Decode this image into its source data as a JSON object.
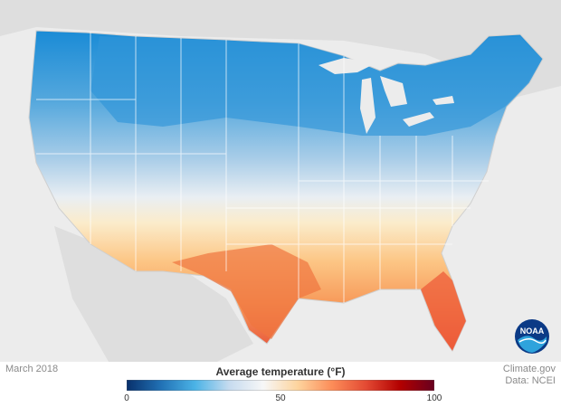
{
  "caption": {
    "date": "March 2018",
    "source_line1": "Climate.gov",
    "source_line2": "Data: NCEI"
  },
  "legend": {
    "title": "Average temperature (°F)",
    "min": 0,
    "max": 100,
    "ticks": [
      "0",
      "50",
      "100"
    ],
    "tick_values": [
      0,
      50,
      100
    ]
  },
  "logo": {
    "text": "NOAA"
  },
  "colors": {
    "background": "#ececec",
    "land_outside": "#d9d9d9",
    "state_border": "#b8b8b8",
    "scale_stops": [
      "#08306b",
      "#2171b5",
      "#4bb3e6",
      "#c6dbef",
      "#f7f7f7",
      "#fdd49e",
      "#fc8d59",
      "#e34a33",
      "#b30000",
      "#67001f"
    ]
  }
}
